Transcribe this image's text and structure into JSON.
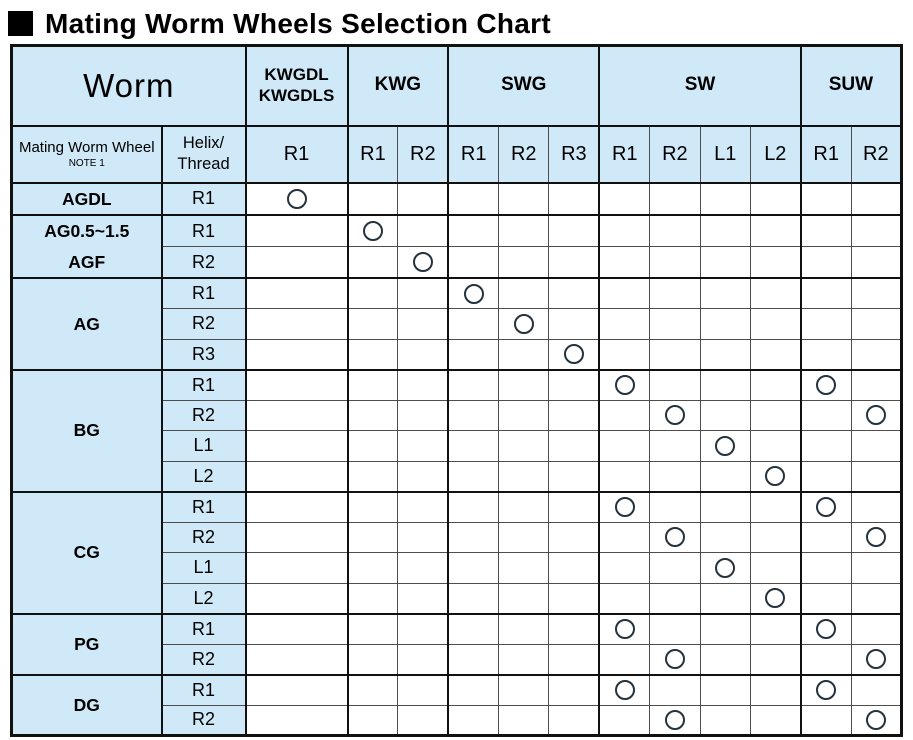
{
  "title": {
    "text": "Mating Worm Wheels Selection Chart"
  },
  "table": {
    "worm_label": "Worm",
    "row_header_label": "Mating Worm Wheel",
    "row_header_note": "NOTE 1",
    "helix_label_line1": "Helix/",
    "helix_label_line2": "Thread",
    "mark_symbol": "circle",
    "colors": {
      "header_fill": "#cfe9f8",
      "border_strong": "#111111",
      "border_light": "#4d4d4d",
      "mark_stroke": "#26323d"
    },
    "column_groups": [
      {
        "label_lines": [
          "KWGDL",
          "KWGDLS"
        ],
        "columns": [
          "R1"
        ]
      },
      {
        "label_lines": [
          "KWG"
        ],
        "columns": [
          "R1",
          "R2"
        ]
      },
      {
        "label_lines": [
          "SWG"
        ],
        "columns": [
          "R1",
          "R2",
          "R3"
        ]
      },
      {
        "label_lines": [
          "SW"
        ],
        "columns": [
          "R1",
          "R2",
          "L1",
          "L2"
        ]
      },
      {
        "label_lines": [
          "SUW"
        ],
        "columns": [
          "R1",
          "R2"
        ]
      }
    ],
    "row_groups": [
      {
        "label_lines": [
          "AGDL"
        ],
        "rows": [
          {
            "helix": "R1",
            "marks": [
              0
            ]
          }
        ]
      },
      {
        "label_lines": [
          "AG0.5~1.5",
          "AGF"
        ],
        "rows": [
          {
            "helix": "R1",
            "marks": [
              1
            ]
          },
          {
            "helix": "R2",
            "marks": [
              2
            ]
          }
        ]
      },
      {
        "label_lines": [
          "AG"
        ],
        "rows": [
          {
            "helix": "R1",
            "marks": [
              3
            ]
          },
          {
            "helix": "R2",
            "marks": [
              4
            ]
          },
          {
            "helix": "R3",
            "marks": [
              5
            ]
          }
        ]
      },
      {
        "label_lines": [
          "BG"
        ],
        "rows": [
          {
            "helix": "R1",
            "marks": [
              6,
              10
            ]
          },
          {
            "helix": "R2",
            "marks": [
              7,
              11
            ]
          },
          {
            "helix": "L1",
            "marks": [
              8
            ]
          },
          {
            "helix": "L2",
            "marks": [
              9
            ]
          }
        ]
      },
      {
        "label_lines": [
          "CG"
        ],
        "rows": [
          {
            "helix": "R1",
            "marks": [
              6,
              10
            ]
          },
          {
            "helix": "R2",
            "marks": [
              7,
              11
            ]
          },
          {
            "helix": "L1",
            "marks": [
              8
            ]
          },
          {
            "helix": "L2",
            "marks": [
              9
            ]
          }
        ]
      },
      {
        "label_lines": [
          "PG"
        ],
        "rows": [
          {
            "helix": "R1",
            "marks": [
              6,
              10
            ]
          },
          {
            "helix": "R2",
            "marks": [
              7,
              11
            ]
          }
        ]
      },
      {
        "label_lines": [
          "DG"
        ],
        "rows": [
          {
            "helix": "R1",
            "marks": [
              6,
              10
            ]
          },
          {
            "helix": "R2",
            "marks": [
              7,
              11
            ]
          }
        ]
      }
    ]
  }
}
